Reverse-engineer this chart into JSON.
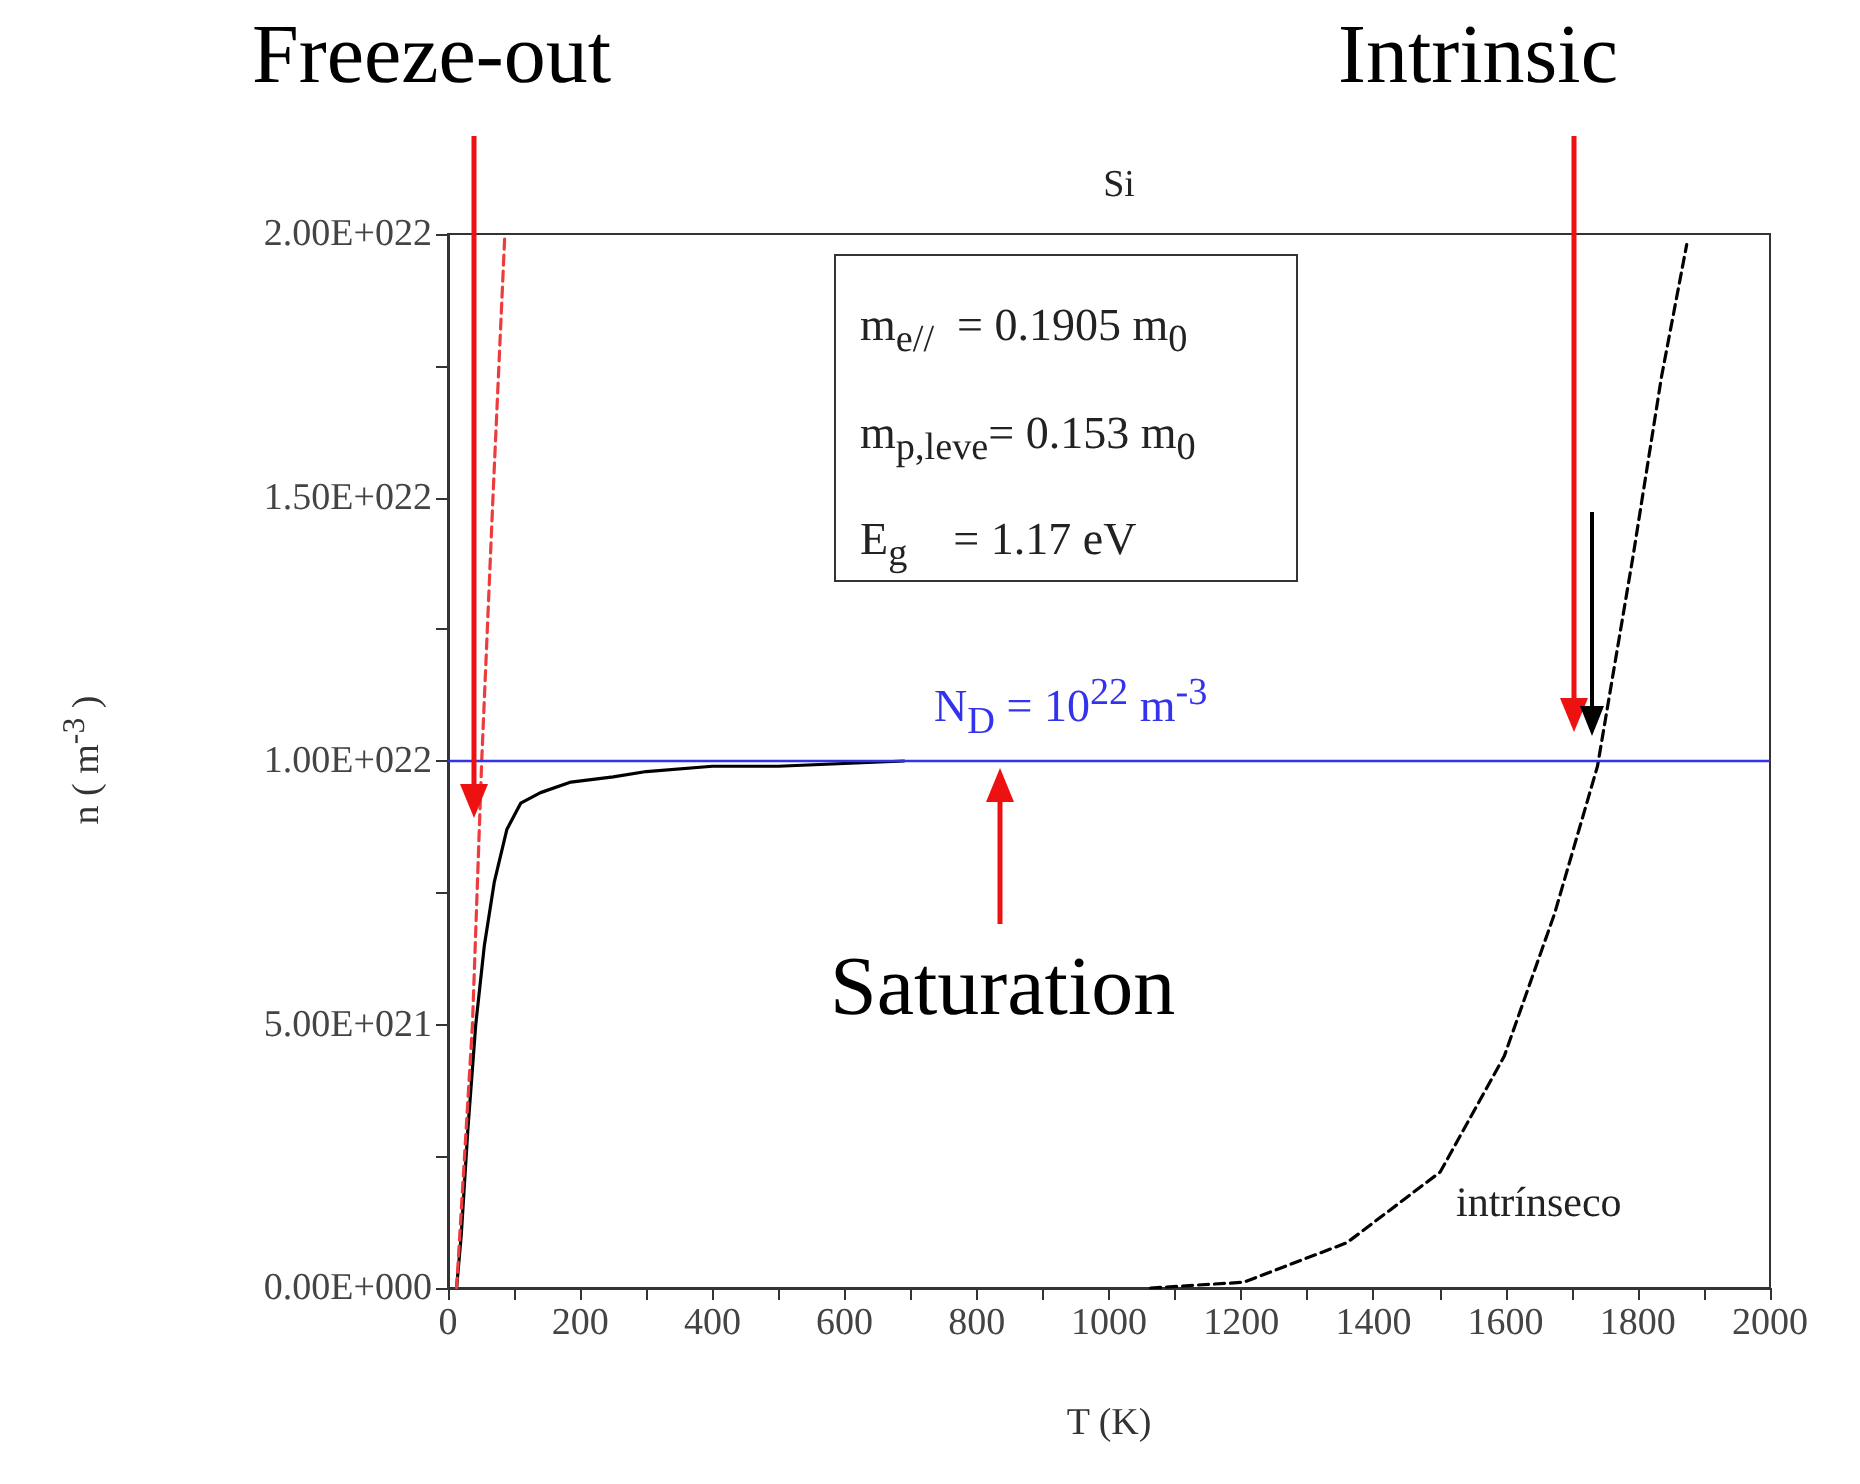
{
  "chart_data": {
    "type": "line",
    "title": "Si",
    "xlabel": "T (K)",
    "ylabel": "n ( m$^{-3}$ )",
    "xlim": [
      0,
      2000
    ],
    "xticks": [
      0,
      {
        "value": 100,
        "label": null
      },
      200,
      {
        "value": 300,
        "label": null
      },
      400,
      {
        "value": 500,
        "label": null
      },
      600,
      {
        "value": 700,
        "label": null
      },
      800,
      {
        "value": 900,
        "label": null
      },
      1000,
      {
        "value": 1100,
        "label": null
      },
      1200,
      {
        "value": 1300,
        "label": null
      },
      1400,
      {
        "value": 1500,
        "label": null
      },
      1600,
      {
        "value": 1700,
        "label": null
      },
      1800,
      {
        "value": 1900,
        "label": null
      },
      2000
    ],
    "ylim": [
      0,
      2e+22
    ],
    "yticks": [
      {
        "value": 0,
        "label": "0.00E+000"
      },
      {
        "value": 2.5e+21,
        "label": null
      },
      {
        "value": 5e+21,
        "label": "5.00E+021"
      },
      {
        "value": 7.5e+21,
        "label": null
      },
      {
        "value": 1e+22,
        "label": "1.00E+022"
      },
      {
        "value": 1.25e+22,
        "label": null
      },
      {
        "value": 1.5e+22,
        "label": "1.50E+022"
      },
      {
        "value": 1.75e+22,
        "label": null
      },
      {
        "value": 2e+22,
        "label": "2.00E+022"
      }
    ],
    "grid": false,
    "marker": "none",
    "series": [
      {
        "color": "#000000",
        "line_style": "solid",
        "x": [
          13,
          20,
          30,
          42,
          55,
          70,
          89,
          110,
          140,
          186,
          250,
          300,
          400,
          500,
          690
        ],
        "values": [
          0,
          1e+21,
          3e+21,
          5e+21,
          6.5e+21,
          7.7e+21,
          8.7e+21,
          9.2e+21,
          9.4e+21,
          9.6e+21,
          9.7e+21,
          9.8e+21,
          9.9e+21,
          9.9e+21,
          1e+22
        ]
      },
      {
        "color": "#ee3b3b",
        "line_style": "dashed",
        "x": [
          13,
          25,
          37,
          51,
          68,
          86
        ],
        "values": [
          0,
          2.5e+21,
          5e+21,
          1e+22,
          1.5e+22,
          2e+22
        ]
      },
      {
        "color": "#000000",
        "line_style": "dashed",
        "x": [
          1063,
          1204,
          1360,
          1501,
          1598,
          1674,
          1739,
          1793,
          1836,
          1874
        ],
        "values": [
          0,
          1.1e+20,
          8.6e+20,
          2.2e+21,
          4.4e+21,
          7.1e+21,
          9.9e+21,
          1.39e+22,
          1.73e+22,
          1.98e+22
        ]
      }
    ],
    "ref_lines": [
      {
        "axis": "y",
        "value": 1e+22,
        "color": "#3333ee",
        "line_style": "solid"
      }
    ],
    "annotations": [
      "Freeze-out",
      "Intrinsic",
      "Saturation",
      "intrínseco",
      "N$_{D}$   = 10$^{22}$ m$^{-3}$",
      "m$_{e//}$  = 0.1905 m$_{0}$",
      "m$_{p,leve}$= 0.153 m$_{0}$",
      "E$_{g}$    = 1.17 eV"
    ]
  }
}
